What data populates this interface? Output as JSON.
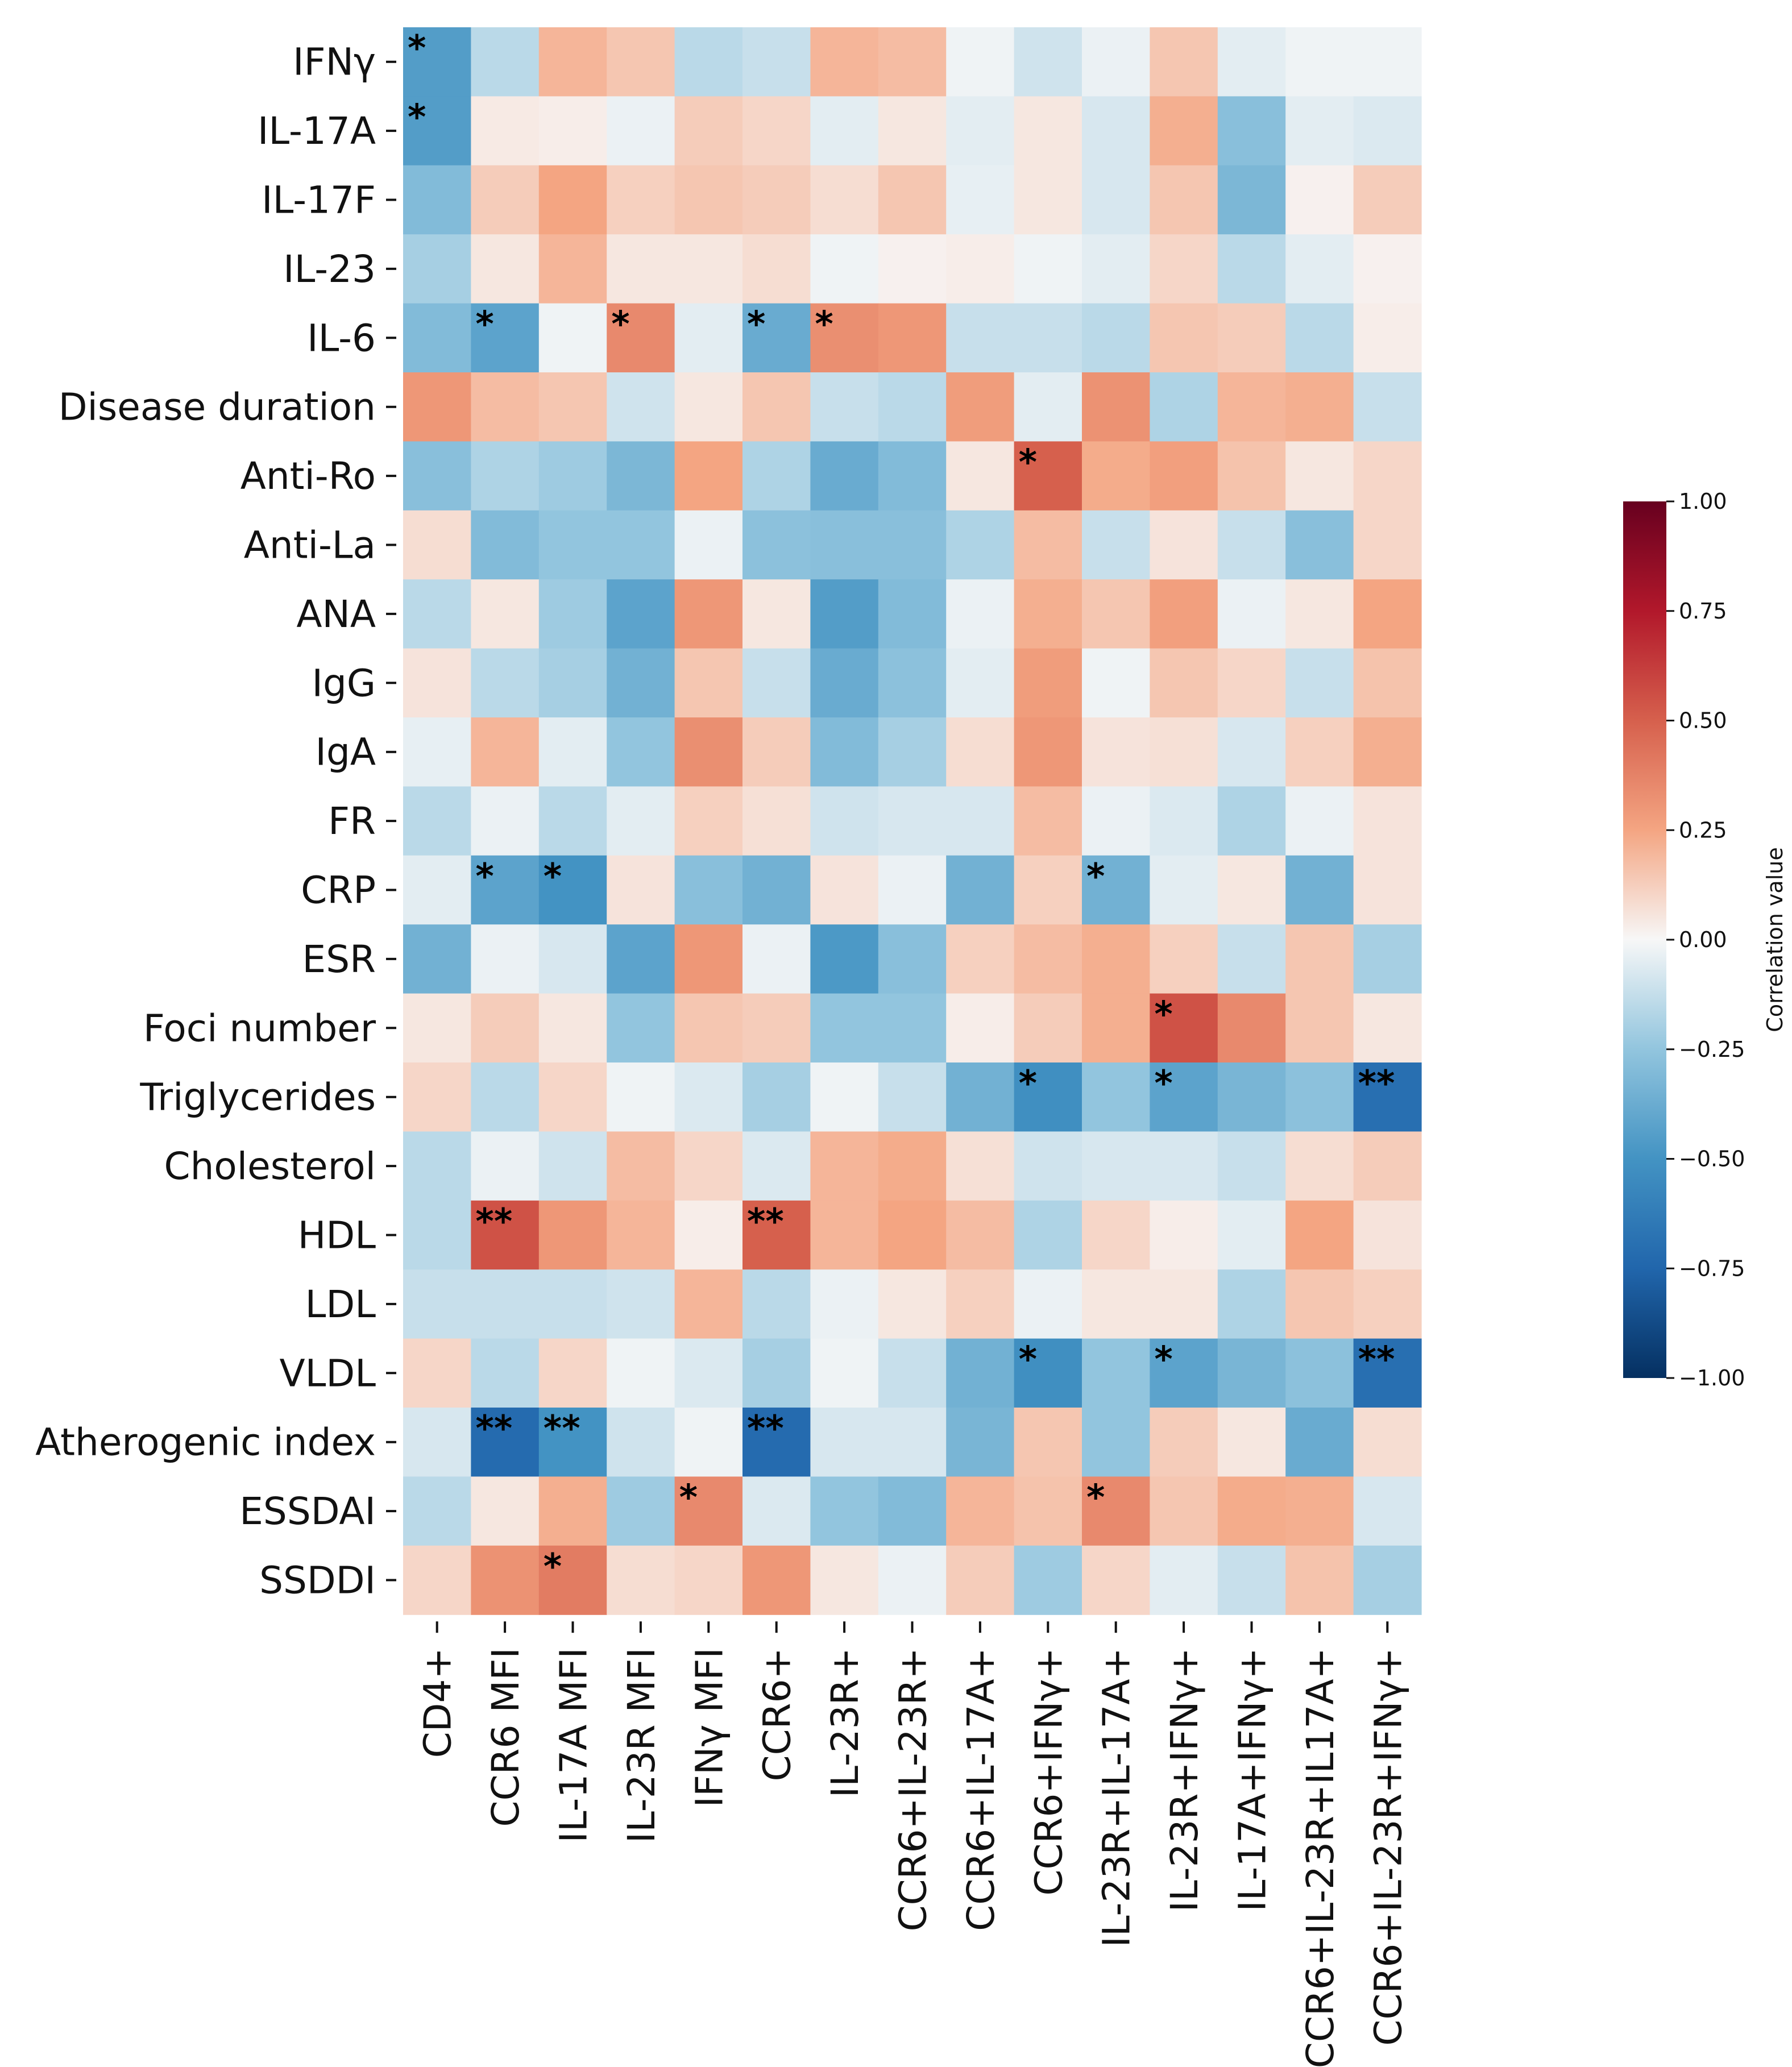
{
  "chart_data": {
    "type": "heatmap",
    "rows": [
      "IFNγ",
      "IL-17A",
      "IL-17F",
      "IL-23",
      "IL-6",
      "Disease duration",
      "Anti-Ro",
      "Anti-La",
      "ANA",
      "IgG",
      "IgA",
      "FR",
      "CRP",
      "ESR",
      "Foci number",
      "Triglycerides",
      "Cholesterol",
      "HDL",
      "LDL",
      "VLDL",
      "Atherogenic index",
      "ESSDAI",
      "SSDDI"
    ],
    "columns": [
      "CD4+",
      "CCR6 MFI",
      "IL-17A MFI",
      "IL-23R MFI",
      "IFNγ MFI",
      "CCR6+",
      "IL-23R+",
      "CCR6+IL-23R+",
      "CCR6+IL-17A+",
      "CCR6+IFNγ+",
      "IL-23R+IL-17A+",
      "IL-23R+IFNγ+",
      "IL-17A+IFNγ+",
      "CCR6+IL-23R+IL17A+",
      "CCR6+IL-23R+IFNγ+"
    ],
    "values": [
      [
        -0.45,
        -0.15,
        0.2,
        0.15,
        -0.15,
        -0.12,
        0.2,
        0.18,
        -0.02,
        -0.1,
        -0.03,
        0.15,
        -0.05,
        -0.02,
        -0.02
      ],
      [
        -0.45,
        0.04,
        0.03,
        -0.03,
        0.13,
        0.1,
        -0.05,
        0.05,
        -0.05,
        0.05,
        -0.08,
        0.22,
        -0.28,
        -0.05,
        -0.07
      ],
      [
        -0.3,
        0.13,
        0.25,
        0.12,
        0.15,
        0.13,
        0.08,
        0.15,
        -0.04,
        0.05,
        -0.08,
        0.15,
        -0.32,
        0.02,
        0.13
      ],
      [
        -0.2,
        0.05,
        0.2,
        0.05,
        0.05,
        0.08,
        -0.02,
        0.02,
        0.03,
        -0.02,
        -0.05,
        0.1,
        -0.15,
        -0.05,
        0.02
      ],
      [
        -0.3,
        -0.42,
        -0.02,
        0.35,
        -0.05,
        -0.38,
        0.33,
        0.3,
        -0.12,
        -0.12,
        -0.15,
        0.15,
        0.13,
        -0.15,
        0.03
      ],
      [
        0.3,
        0.18,
        0.15,
        -0.1,
        0.05,
        0.15,
        -0.12,
        -0.15,
        0.28,
        -0.05,
        0.32,
        -0.18,
        0.2,
        0.22,
        -0.12
      ],
      [
        -0.28,
        -0.18,
        -0.22,
        -0.32,
        0.25,
        -0.18,
        -0.38,
        -0.3,
        0.05,
        0.5,
        0.23,
        0.27,
        0.16,
        0.05,
        0.1
      ],
      [
        0.08,
        -0.3,
        -0.25,
        -0.25,
        -0.03,
        -0.27,
        -0.28,
        -0.28,
        -0.18,
        0.18,
        -0.12,
        0.06,
        -0.12,
        -0.28,
        0.1
      ],
      [
        -0.15,
        0.05,
        -0.22,
        -0.42,
        0.3,
        0.05,
        -0.45,
        -0.3,
        -0.03,
        0.22,
        0.15,
        0.27,
        -0.03,
        0.05,
        0.25
      ],
      [
        0.06,
        -0.15,
        -0.2,
        -0.35,
        0.15,
        -0.12,
        -0.38,
        -0.27,
        -0.05,
        0.28,
        -0.02,
        0.15,
        0.1,
        -0.12,
        0.16
      ],
      [
        -0.04,
        0.2,
        -0.05,
        -0.25,
        0.33,
        0.13,
        -0.3,
        -0.2,
        0.08,
        0.3,
        0.06,
        0.07,
        -0.08,
        0.12,
        0.22
      ],
      [
        -0.15,
        -0.03,
        -0.15,
        -0.05,
        0.12,
        0.07,
        -0.1,
        -0.08,
        -0.08,
        0.18,
        -0.03,
        -0.07,
        -0.18,
        -0.03,
        0.06
      ],
      [
        -0.05,
        -0.42,
        -0.5,
        0.06,
        -0.28,
        -0.35,
        0.06,
        -0.03,
        -0.35,
        0.12,
        -0.35,
        -0.05,
        0.05,
        -0.35,
        0.06
      ],
      [
        -0.35,
        -0.03,
        -0.08,
        -0.42,
        0.3,
        -0.03,
        -0.47,
        -0.28,
        0.12,
        0.18,
        0.22,
        0.12,
        -0.12,
        0.15,
        -0.2
      ],
      [
        0.05,
        0.13,
        0.05,
        -0.25,
        0.15,
        0.13,
        -0.25,
        -0.25,
        0.03,
        0.13,
        0.22,
        0.55,
        0.35,
        0.15,
        0.05
      ],
      [
        0.1,
        -0.15,
        0.1,
        -0.02,
        -0.07,
        -0.2,
        -0.02,
        -0.12,
        -0.35,
        -0.52,
        -0.25,
        -0.42,
        -0.33,
        -0.27,
        -0.7
      ],
      [
        -0.15,
        -0.03,
        -0.1,
        0.18,
        0.1,
        -0.07,
        0.2,
        0.23,
        0.07,
        -0.1,
        -0.08,
        -0.08,
        -0.12,
        0.08,
        0.13
      ],
      [
        -0.15,
        0.55,
        0.3,
        0.2,
        0.03,
        0.5,
        0.2,
        0.25,
        0.18,
        -0.18,
        0.1,
        0.03,
        -0.05,
        0.25,
        0.06
      ],
      [
        -0.12,
        -0.12,
        -0.12,
        -0.1,
        0.2,
        -0.15,
        -0.03,
        0.05,
        0.12,
        -0.03,
        0.05,
        0.05,
        -0.18,
        0.15,
        0.12
      ],
      [
        0.1,
        -0.15,
        0.1,
        -0.02,
        -0.07,
        -0.2,
        -0.02,
        -0.12,
        -0.35,
        -0.52,
        -0.25,
        -0.42,
        -0.33,
        -0.27,
        -0.7
      ],
      [
        -0.08,
        -0.72,
        -0.5,
        -0.1,
        -0.02,
        -0.72,
        -0.08,
        -0.08,
        -0.33,
        0.15,
        -0.25,
        0.13,
        0.05,
        -0.38,
        0.08
      ],
      [
        -0.15,
        0.05,
        0.22,
        -0.22,
        0.35,
        -0.07,
        -0.25,
        -0.3,
        0.2,
        0.16,
        0.35,
        0.15,
        0.23,
        0.22,
        -0.08
      ],
      [
        0.1,
        0.32,
        0.4,
        0.08,
        0.1,
        0.3,
        0.05,
        -0.03,
        0.13,
        -0.22,
        0.1,
        -0.05,
        -0.12,
        0.16,
        -0.2
      ]
    ],
    "annotations": [
      {
        "row": 0,
        "col": 0,
        "text": "*"
      },
      {
        "row": 1,
        "col": 0,
        "text": "*"
      },
      {
        "row": 4,
        "col": 1,
        "text": "*"
      },
      {
        "row": 4,
        "col": 3,
        "text": "*"
      },
      {
        "row": 4,
        "col": 5,
        "text": "*"
      },
      {
        "row": 4,
        "col": 6,
        "text": "*"
      },
      {
        "row": 6,
        "col": 9,
        "text": "*"
      },
      {
        "row": 12,
        "col": 1,
        "text": "*"
      },
      {
        "row": 12,
        "col": 2,
        "text": "*"
      },
      {
        "row": 12,
        "col": 10,
        "text": "*"
      },
      {
        "row": 14,
        "col": 11,
        "text": "*"
      },
      {
        "row": 15,
        "col": 9,
        "text": "*"
      },
      {
        "row": 15,
        "col": 11,
        "text": "*"
      },
      {
        "row": 15,
        "col": 14,
        "text": "**"
      },
      {
        "row": 17,
        "col": 1,
        "text": "**"
      },
      {
        "row": 17,
        "col": 5,
        "text": "**"
      },
      {
        "row": 19,
        "col": 9,
        "text": "*"
      },
      {
        "row": 19,
        "col": 11,
        "text": "*"
      },
      {
        "row": 19,
        "col": 14,
        "text": "**"
      },
      {
        "row": 20,
        "col": 1,
        "text": "**"
      },
      {
        "row": 20,
        "col": 2,
        "text": "**"
      },
      {
        "row": 20,
        "col": 5,
        "text": "**"
      },
      {
        "row": 21,
        "col": 4,
        "text": "*"
      },
      {
        "row": 21,
        "col": 10,
        "text": "*"
      },
      {
        "row": 22,
        "col": 2,
        "text": "*"
      }
    ],
    "colorbar": {
      "label": "Correlation value",
      "range": [
        -1,
        1
      ],
      "ticks": [
        1.0,
        0.75,
        0.5,
        0.25,
        0.0,
        -0.25,
        -0.5,
        -0.75,
        -1.0
      ],
      "tick_labels": [
        "1.00",
        "0.75",
        "0.50",
        "0.25",
        "0.00",
        "−0.25",
        "−0.50",
        "−0.75",
        "−1.00"
      ],
      "colormap": "RdBu_r"
    }
  }
}
